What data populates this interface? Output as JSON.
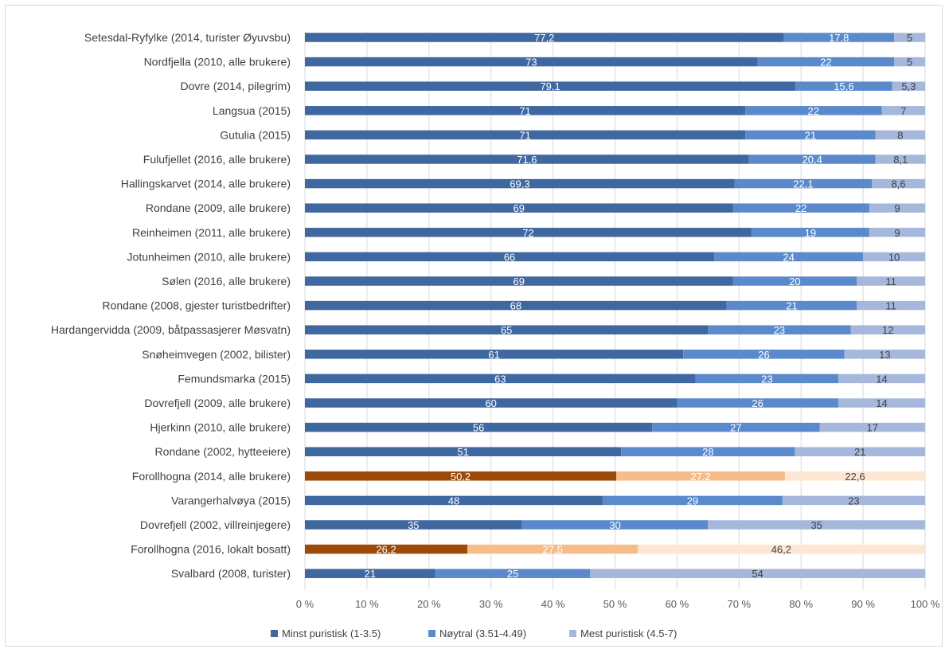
{
  "chart_data": {
    "type": "bar",
    "orientation": "horizontal",
    "stacked": "percent",
    "categories": [
      "Setesdal-Ryfylke (2014, turister Øyuvsbu)",
      "Nordfjella (2010, alle brukere)",
      "Dovre (2014, pilegrim)",
      "Langsua (2015)",
      "Gutulia (2015)",
      "Fulufjellet (2016, alle brukere)",
      "Hallingskarvet (2014, alle brukere)",
      "Rondane (2009, alle brukere)",
      "Reinheimen (2011, alle brukere)",
      "Jotunheimen (2010, alle brukere)",
      "Sølen (2016, alle brukere)",
      "Rondane (2008, gjester turistbedrifter)",
      "Hardangervidda (2009, båtpassasjerer Møsvatn)",
      "Snøheimvegen (2002, bilister)",
      "Femundsmarka (2015)",
      "Dovrefjell (2009, alle brukere)",
      "Hjerkinn (2010, alle brukere)",
      "Rondane (2002, hytteeiere)",
      "Forollhogna (2014, alle brukere)",
      "Varangerhalvøya (2015)",
      "Dovrefjell (2002, villreinjegere)",
      "Forollhogna (2016, lokalt bosatt)",
      "Svalbard (2008, turister)"
    ],
    "series": [
      {
        "name": "Minst puristisk (1-3.5)",
        "values": [
          77.2,
          73,
          79.1,
          71,
          71,
          71.6,
          69.3,
          69,
          72,
          66,
          69,
          68,
          65,
          61,
          63,
          60,
          56,
          51,
          50.2,
          48,
          35,
          26.2,
          21
        ],
        "labels": [
          "77,2",
          "73",
          "79,1",
          "71",
          "71",
          "71,6",
          "69,3",
          "69",
          "72",
          "66",
          "69",
          "68",
          "65",
          "61",
          "63",
          "60",
          "56",
          "51",
          "50,2",
          "48",
          "35",
          "26,2",
          "21"
        ]
      },
      {
        "name": "Nøytral (3.51-4.49)",
        "values": [
          17.8,
          22,
          15.6,
          22,
          21,
          20.4,
          22.1,
          22,
          19,
          24,
          20,
          21,
          23,
          26,
          23,
          26,
          27,
          28,
          27.2,
          29,
          30,
          27.5,
          25
        ],
        "labels": [
          "17,8",
          "22",
          "15,6",
          "22",
          "21",
          "20,4",
          "22,1",
          "22",
          "19",
          "24",
          "20",
          "21",
          "23",
          "26",
          "23",
          "26",
          "27",
          "28",
          "27,2",
          "29",
          "30",
          "27,5",
          "25"
        ]
      },
      {
        "name": "Mest puristisk (4.5-7)",
        "values": [
          5,
          5,
          5.3,
          7,
          8,
          8.1,
          8.6,
          9,
          9,
          10,
          11,
          11,
          12,
          13,
          14,
          14,
          17,
          21,
          22.6,
          23,
          35,
          46.2,
          54
        ],
        "labels": [
          "5",
          "5",
          "5,3",
          "7",
          "8",
          "8,1",
          "8,6",
          "9",
          "9",
          "10",
          "11",
          "11",
          "12",
          "13",
          "14",
          "14",
          "17",
          "21",
          "22,6",
          "23",
          "35",
          "46,2",
          "54"
        ]
      }
    ],
    "x_ticks": [
      "0 %",
      "10 %",
      "20 %",
      "30 %",
      "40 %",
      "50 %",
      "60 %",
      "70 %",
      "80 %",
      "90 %",
      "100 %"
    ],
    "xlim": [
      0,
      100
    ],
    "grid": true,
    "legend_position": "bottom",
    "colors": {
      "series": [
        "#3f67a0",
        "#5a8acb",
        "#a5b8dc"
      ],
      "highlight": [
        "#9c4a07",
        "#f6bd8a",
        "#fde7d2"
      ],
      "grid": "#d9d9d9",
      "label_light": "#ffffff",
      "label_dark": "#404040"
    },
    "highlight_categories": [
      "Forollhogna (2014, alle brukere)",
      "Forollhogna (2016, lokalt bosatt)"
    ]
  }
}
